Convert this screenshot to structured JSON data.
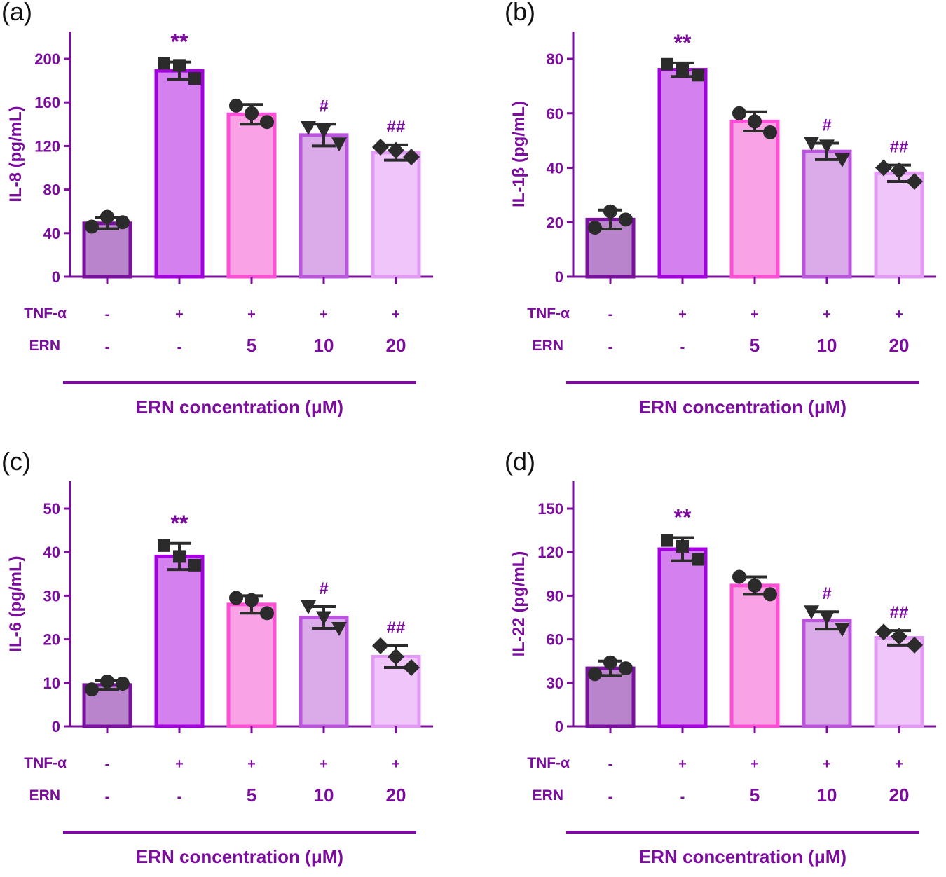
{
  "colors": {
    "axis": "#7b0c9e",
    "point": "#2b2b2b",
    "fills": [
      "#b984cc",
      "#d580ef",
      "#f9a2e6",
      "#dbaae8",
      "#f0c5fa"
    ],
    "strokes": [
      "#7a0fa0",
      "#a400e0",
      "#ff4fd6",
      "#bb55dd",
      "#e39af5"
    ]
  },
  "row_labels": [
    "TNF-α",
    "ERN"
  ],
  "tnf": [
    "-",
    "+",
    "+",
    "+",
    "+"
  ],
  "ern": [
    "-",
    "-",
    "5",
    "10",
    "20"
  ],
  "markers": [
    "circle",
    "square",
    "circle",
    "triangle",
    "diamond"
  ],
  "chart_data": [
    {
      "type": "bar",
      "panel": "(a)",
      "ylabel": "IL-8 (pg/mL)",
      "xlabel": "ERN concentration (μM)",
      "ylim": [
        0,
        200
      ],
      "yticks": [
        0,
        40,
        80,
        120,
        160,
        200
      ],
      "values": [
        49,
        189,
        149,
        130,
        114
      ],
      "errors": [
        5,
        8,
        9,
        10,
        7
      ],
      "points": [
        [
          46,
          55,
          50
        ],
        [
          196,
          182,
          194
        ],
        [
          157,
          142,
          150
        ],
        [
          137,
          122,
          134
        ],
        [
          119,
          110,
          116
        ]
      ],
      "annotations": [
        "",
        "**",
        "",
        "#",
        "##"
      ]
    },
    {
      "type": "bar",
      "panel": "(b)",
      "ylabel": "IL-1β (pg/mL)",
      "xlabel": "ERN concentration (μM)",
      "ylim": [
        0,
        80
      ],
      "yticks": [
        0,
        20,
        40,
        60,
        80
      ],
      "values": [
        21,
        76,
        57,
        46,
        38
      ],
      "errors": [
        3.5,
        2.5,
        3.5,
        3,
        3
      ],
      "points": [
        [
          18,
          24,
          21
        ],
        [
          78,
          74,
          76
        ],
        [
          60,
          53,
          57
        ],
        [
          49,
          43,
          48
        ],
        [
          40,
          35,
          39
        ]
      ],
      "annotations": [
        "",
        "**",
        "",
        "#",
        "##"
      ]
    },
    {
      "type": "bar",
      "panel": "(c)",
      "ylabel": "IL-6 (pg/mL)",
      "xlabel": "ERN concentration (μM)",
      "ylim": [
        0,
        50
      ],
      "yticks": [
        0,
        10,
        20,
        30,
        40,
        50
      ],
      "values": [
        9.5,
        39,
        28,
        25,
        16
      ],
      "errors": [
        1,
        3,
        2,
        2.5,
        2.5
      ],
      "points": [
        [
          8.5,
          10.3,
          9.8
        ],
        [
          41.5,
          37,
          39
        ],
        [
          29.5,
          26,
          29
        ],
        [
          27.5,
          22.5,
          25
        ],
        [
          18.5,
          13.5,
          16
        ]
      ],
      "annotations": [
        "",
        "**",
        "",
        "#",
        "##"
      ]
    },
    {
      "type": "bar",
      "panel": "(d)",
      "ylabel": "IL-22 (pg/mL)",
      "xlabel": "ERN concentration (μM)",
      "ylim": [
        0,
        150
      ],
      "yticks": [
        0,
        30,
        60,
        90,
        120,
        150
      ],
      "values": [
        40,
        122,
        97,
        73,
        61
      ],
      "errors": [
        5,
        8,
        6,
        6,
        5
      ],
      "points": [
        [
          36,
          44,
          40
        ],
        [
          128,
          115,
          124
        ],
        [
          103,
          91,
          97
        ],
        [
          79,
          67,
          75
        ],
        [
          65,
          56,
          62
        ]
      ],
      "annotations": [
        "",
        "**",
        "",
        "#",
        "##"
      ]
    }
  ]
}
